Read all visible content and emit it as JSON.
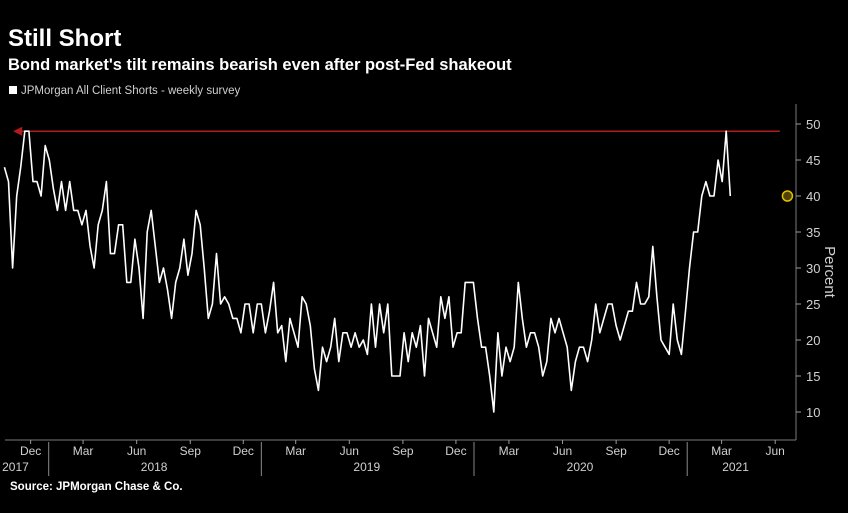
{
  "chart_data": {
    "type": "line",
    "title": "Still Short",
    "subtitle": "Bond market's tilt remains bearish even after post-Fed shakeout",
    "source": "Source: JPMorgan Chase & Co.",
    "ylabel": "Percent",
    "ylim": [
      5,
      52
    ],
    "yticks": [
      10,
      15,
      20,
      25,
      30,
      35,
      40,
      45,
      50
    ],
    "grid": false,
    "legend": "top-left",
    "colors": {
      "series": "#ffffff",
      "reference": "#b01c1c",
      "highlight": "#e0c000",
      "background": "#000000",
      "text": "#d0d0d0"
    },
    "x_start": "2017-10-18",
    "x_end": "2021-06-23",
    "month_ticks": [
      {
        "label": "Dec",
        "date": "2017-12-01"
      },
      {
        "label": "Mar",
        "date": "2018-03-01"
      },
      {
        "label": "Jun",
        "date": "2018-06-01"
      },
      {
        "label": "Sep",
        "date": "2018-09-01"
      },
      {
        "label": "Dec",
        "date": "2018-12-01"
      },
      {
        "label": "Mar",
        "date": "2019-03-01"
      },
      {
        "label": "Jun",
        "date": "2019-06-01"
      },
      {
        "label": "Sep",
        "date": "2019-09-01"
      },
      {
        "label": "Dec",
        "date": "2019-12-01"
      },
      {
        "label": "Mar",
        "date": "2020-03-01"
      },
      {
        "label": "Jun",
        "date": "2020-06-01"
      },
      {
        "label": "Sep",
        "date": "2020-09-01"
      },
      {
        "label": "Dec",
        "date": "2020-12-01"
      },
      {
        "label": "Mar",
        "date": "2021-03-01"
      },
      {
        "label": "Jun",
        "date": "2021-06-01"
      }
    ],
    "year_labels": [
      {
        "label": "2017",
        "date": "2017-11-05"
      },
      {
        "label": "2018",
        "date": "2018-07-01"
      },
      {
        "label": "2019",
        "date": "2019-07-01"
      },
      {
        "label": "2020",
        "date": "2020-07-01"
      },
      {
        "label": "2021",
        "date": "2021-03-25"
      }
    ],
    "year_dividers": [
      "2018-01-01",
      "2019-01-01",
      "2020-01-01",
      "2021-01-01"
    ],
    "reference_line": {
      "value": 49,
      "from": "2021-06-09",
      "to": "2017-11-01"
    },
    "highlight_point": {
      "date": "2021-06-22",
      "value": 40
    },
    "series": [
      {
        "name": "JPMorgan All Client Shorts - weekly survey",
        "start_date": "2017-10-17",
        "frequency": "weekly",
        "values": [
          44,
          42,
          30,
          40,
          44,
          49,
          49,
          42,
          42,
          40,
          47,
          45,
          41,
          38,
          42,
          38,
          42,
          38,
          38,
          36,
          38,
          33,
          30,
          36,
          38,
          42,
          32,
          32,
          36,
          36,
          28,
          28,
          34,
          30,
          23,
          35,
          38,
          33,
          28,
          30,
          27,
          23,
          28,
          30,
          34,
          29,
          32,
          38,
          36,
          30,
          23,
          25,
          32,
          25,
          26,
          25,
          23,
          23,
          21,
          25,
          25,
          21,
          25,
          25,
          21,
          24,
          28,
          21,
          22,
          17,
          23,
          21,
          19,
          26,
          25,
          22,
          16,
          13,
          19,
          17,
          19,
          23,
          17,
          21,
          21,
          19,
          21,
          19,
          20,
          18,
          25,
          19,
          25,
          21,
          25,
          15,
          15,
          15,
          21,
          17,
          21,
          19,
          22,
          15,
          23,
          21,
          19,
          26,
          23,
          26,
          19,
          21,
          21,
          28,
          28,
          28,
          23,
          19,
          19,
          15,
          10,
          21,
          15,
          19,
          17,
          19,
          28,
          23,
          19,
          21,
          21,
          19,
          15,
          17,
          23,
          21,
          23,
          21,
          19,
          13,
          17,
          19,
          19,
          17,
          20,
          25,
          21,
          23,
          25,
          25,
          22,
          20,
          22,
          24,
          24,
          28,
          25,
          25,
          26,
          33,
          26,
          20,
          19,
          18,
          25,
          20,
          18,
          24,
          30,
          35,
          35,
          40,
          42,
          40,
          40,
          45,
          42,
          49,
          40
        ]
      }
    ]
  }
}
